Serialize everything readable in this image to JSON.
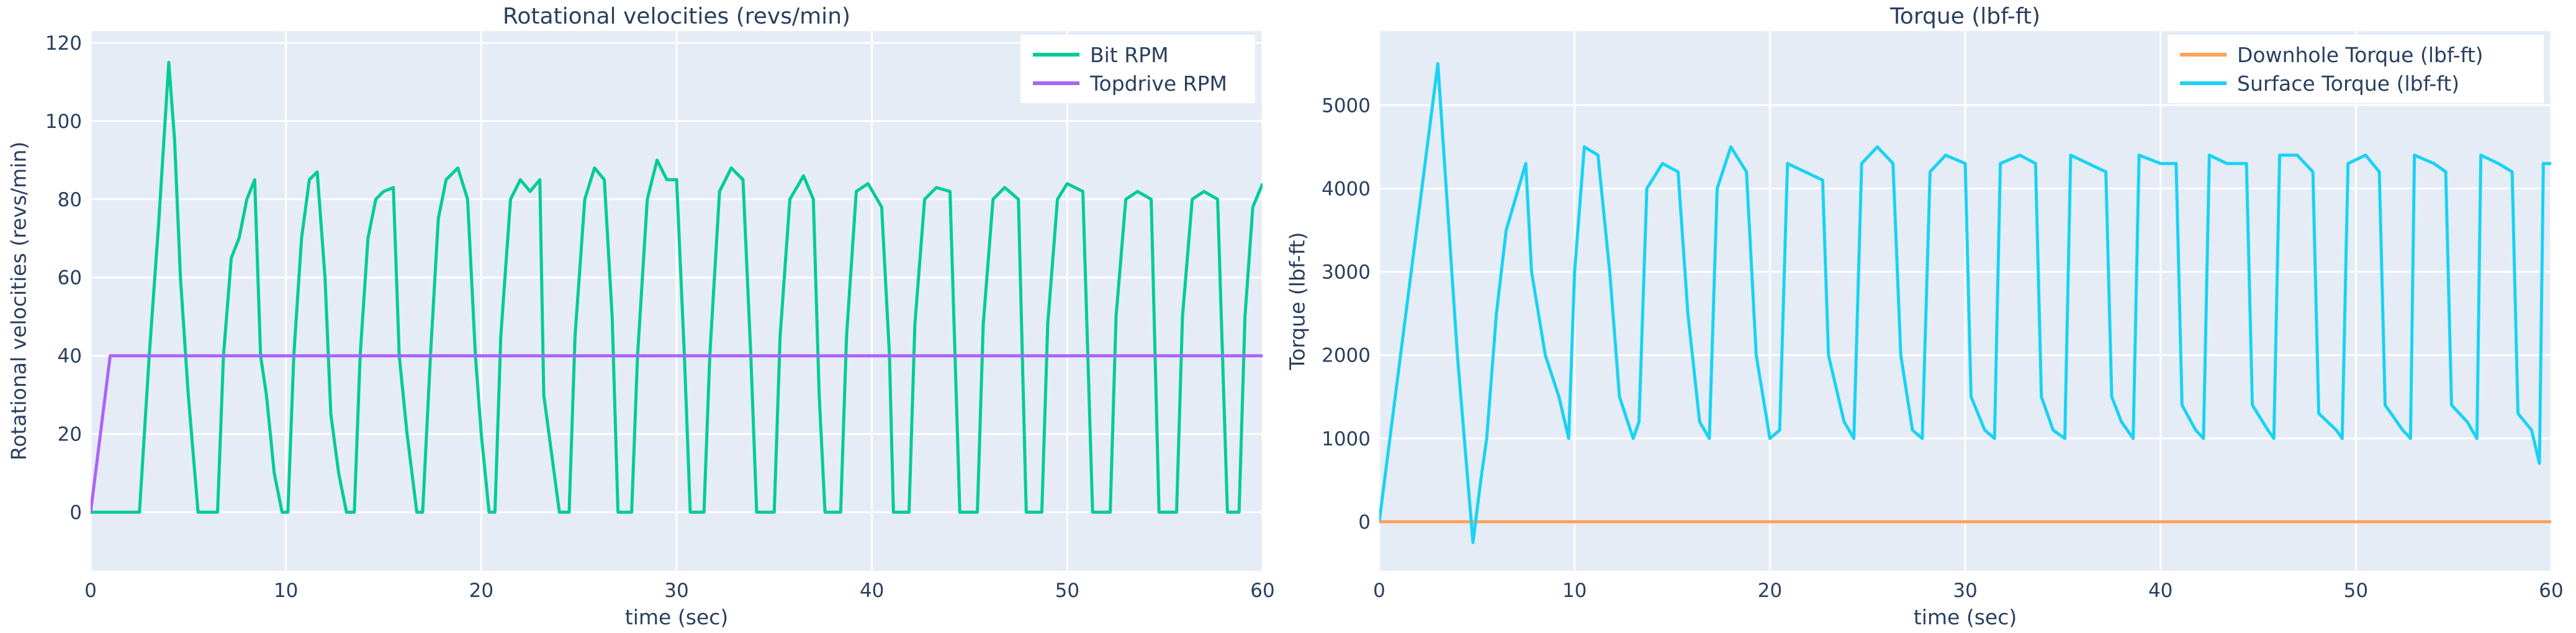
{
  "chart_data": [
    {
      "type": "line",
      "title": "Rotational velocities (revs/min)",
      "x_label": "time (sec)",
      "y_label": "Rotational velocities (revs/min)",
      "xlim": [
        0,
        60
      ],
      "ylim": [
        -15,
        123
      ],
      "xticks": [
        0,
        10,
        20,
        30,
        40,
        50,
        60
      ],
      "yticks": [
        0,
        20,
        40,
        60,
        80,
        100,
        120
      ],
      "grid": true,
      "legend": "top-right",
      "series": [
        {
          "name": "Bit RPM",
          "color": "#00cc96",
          "x": [
            0,
            2.5,
            3,
            3.5,
            4,
            4.3,
            4.6,
            5,
            5.5,
            6.5,
            6.8,
            7.2,
            7.6,
            8,
            8.4,
            8.7,
            9,
            9.4,
            9.8,
            10.1,
            10.4,
            10.8,
            11.2,
            11.6,
            12,
            12.3,
            12.7,
            13.1,
            13.5,
            13.8,
            14.2,
            14.6,
            15,
            15.5,
            15.8,
            16.2,
            16.7,
            17,
            17.4,
            17.8,
            18.2,
            18.8,
            19.3,
            19.7,
            20,
            20.4,
            20.7,
            21,
            21.5,
            22,
            22.5,
            23,
            23.2,
            23.6,
            24,
            24.5,
            24.8,
            25.3,
            25.8,
            26.3,
            26.7,
            27,
            27.7,
            28,
            28.5,
            29,
            29.5,
            30,
            30.4,
            30.7,
            31.4,
            31.7,
            32.2,
            32.8,
            33.4,
            33.8,
            34.1,
            35,
            35.3,
            35.8,
            36.5,
            37,
            37.3,
            37.6,
            38.4,
            38.7,
            39.2,
            39.8,
            40.5,
            40.9,
            41.1,
            41.9,
            42.2,
            42.7,
            43.3,
            44,
            44.5,
            45.4,
            45.7,
            46.2,
            46.8,
            47.5,
            47.9,
            48.7,
            49,
            49.5,
            50,
            50.8,
            51.3,
            52.2,
            52.5,
            53,
            53.6,
            54.3,
            54.7,
            55.6,
            55.9,
            56.4,
            57,
            57.7,
            58.2,
            58.8,
            59.1,
            59.5,
            60
          ],
          "values": [
            0,
            0,
            40,
            75,
            115,
            95,
            60,
            30,
            0,
            0,
            40,
            65,
            70,
            80,
            85,
            40,
            30,
            10,
            0,
            0,
            40,
            70,
            85,
            87,
            60,
            25,
            10,
            0,
            0,
            40,
            70,
            80,
            82,
            83,
            40,
            20,
            0,
            0,
            40,
            75,
            85,
            88,
            80,
            40,
            20,
            0,
            0,
            45,
            80,
            85,
            82,
            85,
            30,
            15,
            0,
            0,
            45,
            80,
            88,
            85,
            50,
            0,
            0,
            40,
            80,
            90,
            85,
            85,
            40,
            0,
            0,
            40,
            82,
            88,
            85,
            40,
            0,
            0,
            45,
            80,
            86,
            80,
            30,
            0,
            0,
            45,
            82,
            84,
            78,
            40,
            0,
            0,
            48,
            80,
            83,
            82,
            0,
            0,
            48,
            80,
            83,
            80,
            0,
            0,
            48,
            80,
            84,
            82,
            0,
            0,
            50,
            80,
            82,
            80,
            0,
            0,
            50,
            80,
            82,
            80,
            0,
            0,
            50,
            78,
            84
          ]
        },
        {
          "name": "Topdrive RPM",
          "color": "#ab63fa",
          "x": [
            0,
            1,
            60
          ],
          "values": [
            0,
            40,
            40
          ]
        }
      ]
    },
    {
      "type": "line",
      "title": "Torque (lbf-ft)",
      "x_label": "time (sec)",
      "y_label": "Torque (lbf-ft)",
      "xlim": [
        0,
        60
      ],
      "ylim": [
        -590,
        5890
      ],
      "xticks": [
        0,
        10,
        20,
        30,
        40,
        50,
        60
      ],
      "yticks": [
        0,
        1000,
        2000,
        3000,
        4000,
        5000
      ],
      "grid": true,
      "legend": "top-right",
      "series": [
        {
          "name": "Downhole Torque (lbf-ft)",
          "color": "#ffa15a",
          "x": [
            0,
            60
          ],
          "values": [
            0,
            0
          ]
        },
        {
          "name": "Surface Torque (lbf-ft)",
          "color": "#19d3f3",
          "x": [
            0,
            3,
            4,
            4.8,
            5.2,
            5.5,
            6,
            6.5,
            7.5,
            7.8,
            8.5,
            9.2,
            9.7,
            10,
            10.5,
            11.2,
            11.8,
            12.3,
            13,
            13.3,
            13.7,
            14.5,
            15.3,
            15.8,
            16.4,
            16.9,
            17.3,
            18,
            18.8,
            19.3,
            20,
            20.5,
            20.9,
            21.8,
            22.7,
            23,
            23.8,
            24.3,
            24.7,
            25.5,
            26.3,
            26.7,
            27.3,
            27.8,
            28.2,
            29,
            30,
            30.3,
            31,
            31.5,
            31.8,
            32.8,
            33.6,
            33.9,
            34.5,
            35.1,
            35.4,
            36.3,
            37.2,
            37.5,
            38,
            38.6,
            38.9,
            40,
            40.8,
            41.1,
            41.8,
            42.2,
            42.5,
            43.4,
            44.4,
            44.7,
            45.5,
            45.8,
            46.1,
            47,
            47.8,
            48.1,
            49,
            49.3,
            49.6,
            50.5,
            51.2,
            51.5,
            52.4,
            52.8,
            53,
            54,
            54.6,
            54.9,
            55.7,
            56.2,
            56.4,
            57.3,
            58,
            58.3,
            59,
            59.4,
            59.6,
            60
          ],
          "values": [
            0,
            5500,
            2000,
            -250,
            500,
            1000,
            2500,
            3500,
            4300,
            3000,
            2000,
            1500,
            1000,
            3000,
            4500,
            4400,
            3000,
            1500,
            1000,
            1200,
            4000,
            4300,
            4200,
            2500,
            1200,
            1000,
            4000,
            4500,
            4200,
            2000,
            1000,
            1100,
            4300,
            4200,
            4100,
            2000,
            1200,
            1000,
            4300,
            4500,
            4300,
            2000,
            1100,
            1000,
            4200,
            4400,
            4300,
            1500,
            1100,
            1000,
            4300,
            4400,
            4300,
            1500,
            1100,
            1000,
            4400,
            4300,
            4200,
            1500,
            1200,
            1000,
            4400,
            4300,
            4300,
            1400,
            1100,
            1000,
            4400,
            4300,
            4300,
            1400,
            1100,
            1000,
            4400,
            4400,
            4200,
            1300,
            1100,
            1000,
            4300,
            4400,
            4200,
            1400,
            1100,
            1000,
            4400,
            4300,
            4200,
            1400,
            1200,
            1000,
            4400,
            4300,
            4200,
            1300,
            1100,
            700,
            4300,
            4300
          ]
        }
      ]
    }
  ]
}
